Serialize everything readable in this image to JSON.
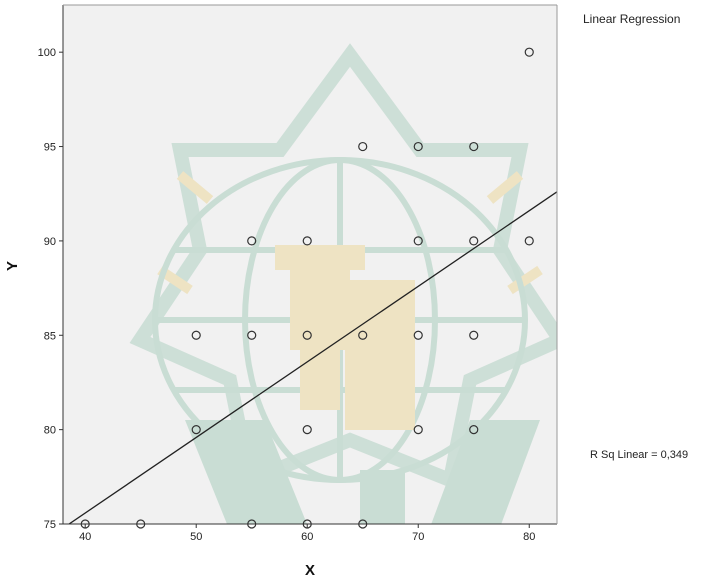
{
  "chart_data": {
    "type": "scatter",
    "title": "",
    "xlabel": "X",
    "ylabel": "Y",
    "xlim": [
      38,
      82.5
    ],
    "ylim": [
      75,
      102.5
    ],
    "x_ticks": [
      40,
      50,
      60,
      70,
      80
    ],
    "y_ticks": [
      75,
      80,
      85,
      90,
      95,
      100
    ],
    "grid": false,
    "points": [
      {
        "x": 40,
        "y": 75
      },
      {
        "x": 45,
        "y": 75
      },
      {
        "x": 55,
        "y": 75
      },
      {
        "x": 60,
        "y": 75
      },
      {
        "x": 65,
        "y": 75
      },
      {
        "x": 50,
        "y": 80
      },
      {
        "x": 60,
        "y": 80
      },
      {
        "x": 70,
        "y": 80
      },
      {
        "x": 75,
        "y": 80
      },
      {
        "x": 50,
        "y": 85
      },
      {
        "x": 55,
        "y": 85
      },
      {
        "x": 60,
        "y": 85
      },
      {
        "x": 65,
        "y": 85
      },
      {
        "x": 70,
        "y": 85
      },
      {
        "x": 75,
        "y": 85
      },
      {
        "x": 55,
        "y": 90
      },
      {
        "x": 60,
        "y": 90
      },
      {
        "x": 70,
        "y": 90
      },
      {
        "x": 75,
        "y": 90
      },
      {
        "x": 80,
        "y": 90
      },
      {
        "x": 65,
        "y": 95
      },
      {
        "x": 70,
        "y": 95
      },
      {
        "x": 75,
        "y": 95
      },
      {
        "x": 80,
        "y": 100
      }
    ],
    "fit_line": {
      "x": [
        38.3,
        82.5
      ],
      "y": [
        74.9,
        92.6
      ]
    },
    "legend": {
      "title": "Linear Regression",
      "placement": "right"
    },
    "annotation": "R Sq Linear = 0,349",
    "colors": {
      "plot_bg": "#f1f1f1",
      "marker": "#333333",
      "fit_line": "#222222",
      "watermark_green": "#c9ddd4",
      "watermark_gold": "#eee3c3"
    }
  }
}
